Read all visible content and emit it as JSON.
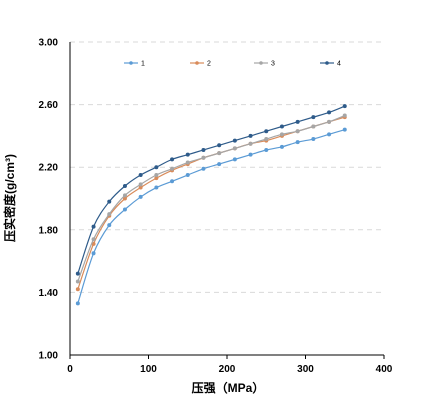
{
  "chart_data": {
    "type": "line",
    "xlabel": "压强（MPa）",
    "ylabel": "压实密度(g/cm³)",
    "xlim": [
      0,
      400
    ],
    "ylim": [
      1.0,
      3.0
    ],
    "x_ticks": [
      "0",
      "100",
      "200",
      "300",
      "400"
    ],
    "y_ticks": [
      "1.00",
      "1.40",
      "1.80",
      "2.20",
      "2.60",
      "3.00"
    ],
    "grid": "horizontal dashed",
    "legend_position": "top",
    "series": [
      {
        "name": "1",
        "color": "#5b9bd5",
        "x": [
          10,
          30,
          50,
          70,
          90,
          110,
          130,
          150,
          170,
          190,
          210,
          230,
          250,
          270,
          290,
          310,
          330,
          350
        ],
        "y": [
          1.33,
          1.65,
          1.83,
          1.93,
          2.01,
          2.07,
          2.11,
          2.15,
          2.19,
          2.22,
          2.25,
          2.28,
          2.31,
          2.33,
          2.36,
          2.38,
          2.41,
          2.44
        ]
      },
      {
        "name": "2",
        "color": "#d98b5a",
        "x": [
          10,
          30,
          50,
          70,
          90,
          110,
          130,
          150,
          170,
          190,
          210,
          230,
          250,
          270,
          290,
          310,
          330,
          350
        ],
        "y": [
          1.42,
          1.71,
          1.89,
          2.0,
          2.07,
          2.13,
          2.18,
          2.22,
          2.26,
          2.29,
          2.32,
          2.35,
          2.37,
          2.4,
          2.43,
          2.46,
          2.49,
          2.52
        ]
      },
      {
        "name": "3",
        "color": "#a6a6a6",
        "x": [
          10,
          30,
          50,
          70,
          90,
          110,
          130,
          150,
          170,
          190,
          210,
          230,
          250,
          270,
          290,
          310,
          330,
          350
        ],
        "y": [
          1.47,
          1.74,
          1.9,
          2.02,
          2.09,
          2.15,
          2.19,
          2.23,
          2.26,
          2.29,
          2.32,
          2.35,
          2.38,
          2.41,
          2.43,
          2.46,
          2.49,
          2.53
        ]
      },
      {
        "name": "4",
        "color": "#2e5b8a",
        "x": [
          10,
          30,
          50,
          70,
          90,
          110,
          130,
          150,
          170,
          190,
          210,
          230,
          250,
          270,
          290,
          310,
          330,
          350
        ],
        "y": [
          1.52,
          1.82,
          1.98,
          2.08,
          2.15,
          2.2,
          2.25,
          2.28,
          2.31,
          2.34,
          2.37,
          2.4,
          2.43,
          2.46,
          2.49,
          2.52,
          2.55,
          2.59
        ]
      }
    ]
  }
}
